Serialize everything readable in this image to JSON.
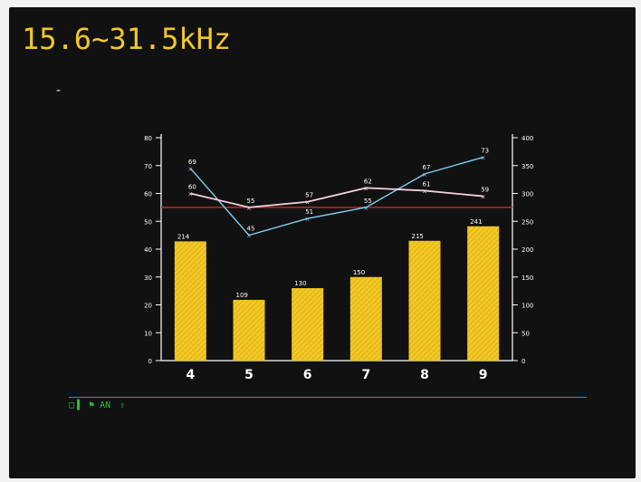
{
  "title": "15.6~31.5kHz",
  "dash": "-",
  "status_items": [
    "□▐",
    "⚑ AN",
    "⇧"
  ],
  "colors": {
    "background": "#111111",
    "bar": "#f2c826",
    "line_blue": "#7fd0f0",
    "line_white": "#f4d2e0",
    "reference": "#c0282a",
    "axis": "#ffffff",
    "status": "#2dbb3a",
    "separator": "#3a8ad6"
  },
  "chart_data": {
    "type": "bar",
    "categories": [
      "4",
      "5",
      "6",
      "7",
      "8",
      "9"
    ],
    "bars": {
      "axis": "right",
      "values": [
        214,
        109,
        130,
        150,
        215,
        241
      ]
    },
    "lines": [
      {
        "axis": "left",
        "color": "#7fd0f0",
        "values": [
          69,
          45,
          51,
          55,
          67,
          73
        ]
      },
      {
        "axis": "left",
        "color": "#f4d2e0",
        "values": [
          60,
          55,
          57,
          62,
          61,
          59
        ]
      }
    ],
    "reference_line": {
      "axis": "left",
      "value": 55
    },
    "y_left": {
      "min": 0,
      "max": 80,
      "ticks": [
        0,
        10,
        20,
        30,
        40,
        50,
        60,
        70,
        80
      ]
    },
    "y_right": {
      "min": 0,
      "max": 400,
      "ticks": [
        0,
        50,
        100,
        150,
        200,
        250,
        300,
        350,
        400
      ]
    },
    "grid": false
  }
}
